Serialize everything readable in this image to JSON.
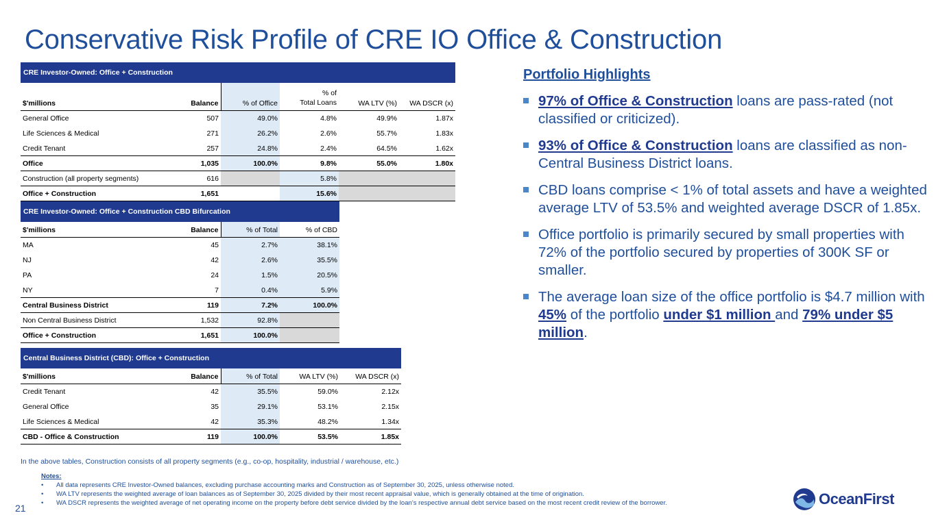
{
  "title": "Conservative Risk Profile of CRE IO Office & Construction",
  "table1": {
    "banner": "CRE Investor-Owned: Office + Construction",
    "headers": [
      "$'millions",
      "Balance",
      "% of Office",
      "% of",
      "Total Loans",
      "WA LTV (%)",
      "WA DSCR (x)"
    ],
    "rows": [
      [
        "General Office",
        "507",
        "49.0%",
        "4.8%",
        "49.9%",
        "1.87x"
      ],
      [
        "Life Sciences & Medical",
        "271",
        "26.2%",
        "2.6%",
        "55.7%",
        "1.83x"
      ],
      [
        "Credit Tenant",
        "257",
        "24.8%",
        "2.4%",
        "64.5%",
        "1.62x"
      ],
      [
        "Office",
        "1,035",
        "100.0%",
        "9.8%",
        "55.0%",
        "1.80x"
      ],
      [
        "Construction (all property segments)",
        "616",
        "",
        "5.8%",
        "",
        ""
      ],
      [
        "Office + Construction",
        "1,651",
        "",
        "15.6%",
        "",
        ""
      ]
    ]
  },
  "table2": {
    "banner": "CRE Investor-Owned: Office + Construction CBD Bifurcation",
    "headers": [
      "$'millions",
      "Balance",
      "% of Total",
      "% of CBD"
    ],
    "rows": [
      [
        "MA",
        "45",
        "2.7%",
        "38.1%"
      ],
      [
        "NJ",
        "42",
        "2.6%",
        "35.5%"
      ],
      [
        "PA",
        "24",
        "1.5%",
        "20.5%"
      ],
      [
        "NY",
        "7",
        "0.4%",
        "5.9%"
      ],
      [
        "Central Business District",
        "119",
        "7.2%",
        "100.0%"
      ],
      [
        "Non Central Business District",
        "1,532",
        "92.8%",
        ""
      ],
      [
        "Office + Construction",
        "1,651",
        "100.0%",
        ""
      ]
    ]
  },
  "table3": {
    "banner": "Central Business District (CBD): Office + Construction",
    "headers": [
      "$'millions",
      "Balance",
      "% of Total",
      "WA LTV (%)",
      "WA DSCR (x)"
    ],
    "rows": [
      [
        "Credit Tenant",
        "42",
        "35.5%",
        "59.0%",
        "2.12x"
      ],
      [
        "General Office",
        "35",
        "29.1%",
        "53.1%",
        "2.15x"
      ],
      [
        "Life Sciences & Medical",
        "42",
        "35.3%",
        "48.2%",
        "1.34x"
      ],
      [
        "CBD - Office & Construction",
        "119",
        "100.0%",
        "53.5%",
        "1.85x"
      ]
    ]
  },
  "highlights": {
    "title": "Portfolio Highlights",
    "b1": {
      "u": "97% of Office & Construction",
      "rest": " loans are pass-rated (not classified or criticized)."
    },
    "b2": {
      "u": "93% of Office & Construction",
      "rest": " loans are classified as non-Central Business District loans."
    },
    "b3": "CBD loans comprise < 1% of total assets and have a weighted average LTV of 53.5% and weighted average DSCR of 1.85x.",
    "b4": "Office portfolio is primarily secured by small properties with 72% of the portfolio secured by properties of 300K SF or smaller.",
    "b5": {
      "t1": "The average loan size of the office portfolio is $4.7 million with ",
      "u1": "45%",
      "t2": " of the portfolio ",
      "u2": "under $1 million ",
      "t3": "and ",
      "u3": "79% under $5 million",
      "t4": "."
    }
  },
  "footnote": "In the above tables, Construction consists of all property segments (e.g., co-op, hospitality, industrial / warehouse, etc.)",
  "notes": {
    "title": "Notes:",
    "bullet": "•",
    "items": [
      "All data represents CRE Investor-Owned balances, excluding purchase accounting marks and Construction as of September 30, 2025, unless otherwise noted.",
      "WA LTV represents the weighted average of loan balances as of September 30, 2025 divided by their most recent appraisal value, which is generally obtained at the time of origination.",
      "WA DSCR represents the weighted average of net operating income on the property before debt service divided by the loan’s respective annual debt service based on the most recent credit review of the borrower."
    ]
  },
  "page_number": "21",
  "logo": {
    "text": "OceanFirst",
    "icon": "oceanfirst-wave-logo-icon"
  },
  "colors": {
    "title": "#1f4e9a",
    "banner": "#1f3a8f",
    "highlight_fill": "#deebf7",
    "gray_fill": "#d9d9d9",
    "bullet": "#4a86c8"
  }
}
